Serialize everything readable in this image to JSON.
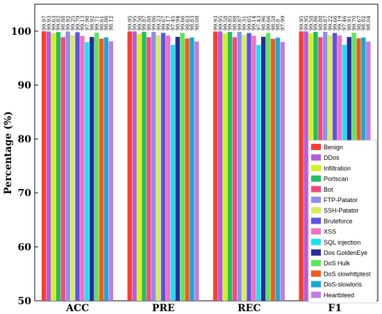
{
  "chart_data": {
    "type": "bar",
    "title": "",
    "xlabel": "",
    "ylabel": "Percentage (%)",
    "ylim": [
      50,
      105
    ],
    "yticks": [
      50,
      60,
      70,
      80,
      90,
      100
    ],
    "grid": false,
    "legend_position": "bottom-right",
    "categories": [
      "ACC",
      "PRE",
      "REC",
      "F1"
    ],
    "series": [
      {
        "name": "Benign",
        "color": "#ff3b30",
        "values": [
          99.97,
          99.95,
          99.93,
          99.95
        ],
        "labels": [
          "99.97",
          "99.95",
          "99.93",
          "99.95"
        ]
      },
      {
        "name": "DDos",
        "color": "#b25de0",
        "values": [
          99.93,
          99.95,
          99.95,
          99.95
        ],
        "labels": [
          "99.93",
          "99.95",
          "99.95",
          "99.95"
        ]
      },
      {
        "name": "Infiltration",
        "color": "#d4f21a",
        "values": [
          99.63,
          99.5,
          99.58,
          99.58
        ],
        "labels": [
          "99.63",
          "99.50",
          "99.58",
          "99.58"
        ]
      },
      {
        "name": "Portscan",
        "color": "#1fbf5e",
        "values": [
          99.82,
          99.87,
          99.85,
          99.86
        ],
        "labels": [
          "99.82",
          "99.87",
          "99.85",
          "99.86"
        ]
      },
      {
        "name": "Bot",
        "color": "#f7487d",
        "values": [
          98.88,
          98.88,
          98.88,
          98.88
        ],
        "labels": [
          "98.88",
          "98.88",
          "98.88",
          "98.88"
        ]
      },
      {
        "name": "FTP-Patator",
        "color": "#8b8ff0",
        "values": [
          99.92,
          99.86,
          99.87,
          99.87
        ],
        "labels": [
          "99.92",
          "99.86",
          "99.87",
          "99.87"
        ]
      },
      {
        "name": "SSH-Patator",
        "color": "#d9ec55",
        "values": [
          99.25,
          99.23,
          99.31,
          99.22
        ],
        "labels": [
          "99.25",
          "99.23",
          "99.31",
          "99.22"
        ]
      },
      {
        "name": "Bruteforce",
        "color": "#5a53e6",
        "values": [
          99.79,
          99.67,
          99.65,
          99.66
        ],
        "labels": [
          "99.79",
          "99.67",
          "99.65",
          "99.66"
        ]
      },
      {
        "name": "XSS",
        "color": "#f56fc0",
        "values": [
          99.13,
          99.17,
          99.14,
          99.19
        ],
        "labels": [
          "99.13",
          "99.17",
          "99.14",
          "99.19"
        ]
      },
      {
        "name": "SQL injection",
        "color": "#14e4f0",
        "values": [
          97.98,
          97.45,
          97.43,
          97.46
        ],
        "labels": [
          "97.98",
          "97.45",
          "97.43",
          "97.46"
        ]
      },
      {
        "name": "Dos GoldenEye",
        "color": "#2a2a9e",
        "values": [
          98.92,
          98.94,
          98.96,
          98.91
        ],
        "labels": [
          "98.92",
          "98.94",
          "98.96",
          "98.91"
        ]
      },
      {
        "name": "DoS Hulk",
        "color": "#5ce65c",
        "values": [
          99.71,
          99.66,
          99.66,
          99.7
        ],
        "labels": [
          "99.71",
          "99.66",
          "99.66",
          "99.70"
        ]
      },
      {
        "name": "DoS slowhttptest",
        "color": "#f25a1c",
        "values": [
          98.61,
          98.63,
          98.58,
          98.67
        ],
        "labels": [
          "98.61",
          "98.63",
          "98.58",
          "98.67"
        ]
      },
      {
        "name": "DoS-slowloris",
        "color": "#17a9d6",
        "values": [
          98.86,
          98.83,
          98.8,
          98.82
        ],
        "labels": [
          "98.86",
          "98.83",
          "98.8",
          "98.82"
        ]
      },
      {
        "name": "Heartbleed",
        "color": "#c47be0",
        "values": [
          98.12,
          98.08,
          97.99,
          98.04
        ],
        "labels": [
          "98.12",
          "98.08",
          "97.99",
          "98.04"
        ]
      }
    ]
  }
}
